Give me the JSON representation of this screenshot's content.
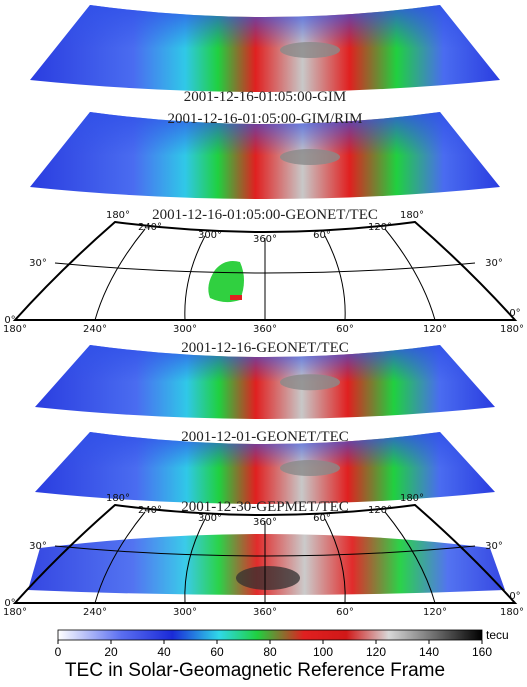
{
  "panels": [
    {
      "caption": "2001-12-16-01:05:00-GIM"
    },
    {
      "caption": "2001-12-16-01:05:00-GIM/RIM"
    },
    {
      "caption": "2001-12-16-01:05:00-GEONET/TEC"
    },
    {
      "caption": "2001-12-16-GEONET/TEC"
    },
    {
      "caption": "2001-12-01-GEONET/TEC"
    },
    {
      "caption": "2001-12-30-GEPMET/TEC"
    }
  ],
  "grid_labels": {
    "longitudes": [
      "180°",
      "240°",
      "300°",
      "360°",
      "60°",
      "120°",
      "180°"
    ],
    "latitudes": [
      "30°",
      "0°"
    ]
  },
  "colorbar": {
    "ticks": [
      0,
      20,
      40,
      60,
      80,
      100,
      120,
      140,
      160
    ],
    "lim": [
      0,
      160
    ],
    "unit": "tecu"
  },
  "title": "TEC in Solar-Geomagnetic Reference Frame"
}
